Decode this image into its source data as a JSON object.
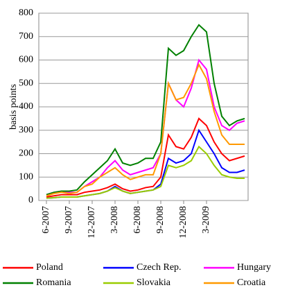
{
  "chart_data": {
    "type": "line",
    "ylabel": "basis points",
    "categories": [
      "6-2007",
      null,
      null,
      "9-2007",
      null,
      null,
      "12-2007",
      null,
      null,
      "3-2008",
      null,
      null,
      "6-2008",
      null,
      null,
      "9-2008",
      null,
      null,
      "12-2008",
      null,
      null,
      "3-2009",
      null,
      null,
      null,
      null,
      null
    ],
    "ylim": [
      0,
      800
    ],
    "yticks": [
      0,
      100,
      200,
      300,
      400,
      500,
      600,
      700,
      800
    ],
    "grid": true,
    "series": [
      {
        "name": "Poland",
        "color": "#ff0000",
        "values": [
          15,
          20,
          25,
          25,
          25,
          35,
          40,
          45,
          55,
          70,
          50,
          40,
          45,
          55,
          60,
          100,
          280,
          230,
          220,
          270,
          350,
          320,
          250,
          200,
          170,
          180,
          190
        ]
      },
      {
        "name": "Czech Rep.",
        "color": "#0000ff",
        "values": [
          10,
          12,
          15,
          15,
          15,
          20,
          25,
          30,
          40,
          60,
          40,
          30,
          35,
          40,
          45,
          70,
          180,
          160,
          170,
          200,
          300,
          250,
          200,
          140,
          120,
          120,
          130
        ]
      },
      {
        "name": "Hungary",
        "color": "#ff00ff",
        "values": [
          25,
          35,
          40,
          35,
          35,
          60,
          80,
          100,
          140,
          170,
          130,
          110,
          120,
          130,
          140,
          200,
          500,
          430,
          400,
          480,
          600,
          560,
          400,
          320,
          300,
          330,
          340
        ]
      },
      {
        "name": "Romania",
        "color": "#008000",
        "values": [
          25,
          35,
          40,
          40,
          45,
          80,
          110,
          140,
          170,
          220,
          160,
          150,
          160,
          180,
          180,
          250,
          650,
          620,
          640,
          700,
          750,
          720,
          500,
          360,
          320,
          340,
          350
        ]
      },
      {
        "name": "Slovakia",
        "color": "#99cc00",
        "values": [
          10,
          12,
          15,
          15,
          15,
          20,
          25,
          30,
          40,
          55,
          40,
          30,
          35,
          40,
          45,
          60,
          150,
          140,
          150,
          170,
          230,
          200,
          150,
          110,
          100,
          95,
          95
        ]
      },
      {
        "name": "Croatia",
        "color": "#ff9900",
        "values": [
          20,
          30,
          35,
          30,
          35,
          60,
          70,
          100,
          120,
          140,
          110,
          90,
          100,
          110,
          110,
          200,
          500,
          430,
          440,
          500,
          580,
          520,
          380,
          280,
          240,
          240,
          240
        ]
      }
    ]
  }
}
